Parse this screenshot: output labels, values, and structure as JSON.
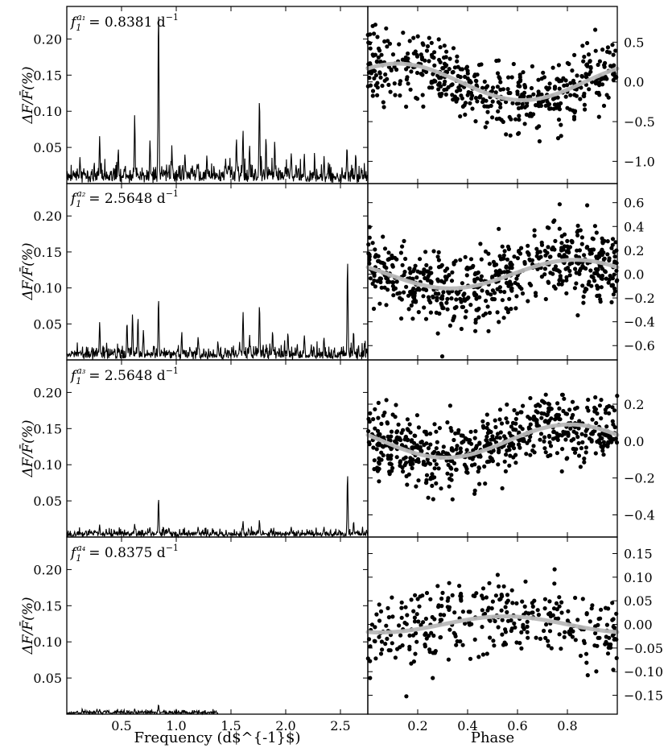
{
  "x_labels": {
    "periodogram": "Frequency (d$^{-1}$)",
    "phase": "Phase"
  },
  "y_label_text": "ΔF/F̄(%)",
  "panels": [
    {
      "annotation": {
        "prefix": "f",
        "sub": "1",
        "sup": "a₁",
        "value": "= 0.8381 d",
        "unit_exp": "−1"
      },
      "phase_yticks": [
        "0.5",
        "0.0",
        "−0.5",
        "−1.0"
      ]
    },
    {
      "annotation": {
        "prefix": "f",
        "sub": "1",
        "sup": "a₂",
        "value": "= 2.5648 d",
        "unit_exp": "−1"
      },
      "phase_yticks": [
        "0.6",
        "0.4",
        "0.2",
        "0.0",
        "−0.2",
        "−0.4",
        "−0.6"
      ]
    },
    {
      "annotation": {
        "prefix": "f",
        "sub": "1",
        "sup": "a₃",
        "value": "= 2.5648 d",
        "unit_exp": "−1"
      },
      "phase_yticks": [
        "0.2",
        "0.0",
        "−0.2",
        "−0.4"
      ]
    },
    {
      "annotation": {
        "prefix": "f",
        "sub": "1",
        "sup": "a₄",
        "value": "= 0.8375 d",
        "unit_exp": "−1"
      },
      "phase_yticks": [
        "0.15",
        "0.10",
        "0.05",
        "0.00",
        "−0.05",
        "−0.10",
        "−0.15"
      ]
    }
  ],
  "chart_data": [
    {
      "type": "line",
      "panel": "periodogram-1",
      "xlabel": "Frequency (d$^{-1}$)",
      "ylabel": "ΔF/F̄(%)",
      "xlim": [
        0.0,
        2.75
      ],
      "ylim": [
        0.0,
        0.245
      ],
      "xticks": [
        "0.5",
        "1.0",
        "1.5",
        "2.0",
        "2.5"
      ],
      "yticks": [
        "0.05",
        "0.10",
        "0.15",
        "0.20"
      ],
      "noise_level": 0.02,
      "peaks": [
        {
          "x": 0.12,
          "y": 0.035
        },
        {
          "x": 0.3,
          "y": 0.063
        },
        {
          "x": 0.47,
          "y": 0.042
        },
        {
          "x": 0.62,
          "y": 0.088
        },
        {
          "x": 0.76,
          "y": 0.058
        },
        {
          "x": 0.838,
          "y": 0.242
        },
        {
          "x": 0.96,
          "y": 0.046
        },
        {
          "x": 1.08,
          "y": 0.04
        },
        {
          "x": 1.28,
          "y": 0.038
        },
        {
          "x": 1.55,
          "y": 0.06
        },
        {
          "x": 1.61,
          "y": 0.072
        },
        {
          "x": 1.67,
          "y": 0.052
        },
        {
          "x": 1.76,
          "y": 0.116
        },
        {
          "x": 1.82,
          "y": 0.06
        },
        {
          "x": 1.9,
          "y": 0.055
        },
        {
          "x": 2.05,
          "y": 0.04
        },
        {
          "x": 2.17,
          "y": 0.038
        },
        {
          "x": 2.35,
          "y": 0.03
        },
        {
          "x": 2.56,
          "y": 0.046
        },
        {
          "x": 2.64,
          "y": 0.038
        }
      ]
    },
    {
      "type": "scatter",
      "panel": "phase-1",
      "xlabel": "Phase",
      "xlim": [
        0.0,
        1.0
      ],
      "ylim": [
        -1.28,
        0.95
      ],
      "xticks": [
        "0.2",
        "0.4",
        "0.6",
        "0.8"
      ],
      "yticks": [
        0.5,
        0.0,
        -0.5,
        -1.0
      ],
      "n_points": 520,
      "scatter_sigma": 0.27,
      "fit_curve": {
        "amplitude": 0.23,
        "phase_of_max": 0.12,
        "offset": 0.0
      }
    },
    {
      "type": "line",
      "panel": "periodogram-2",
      "xlabel": "Frequency (d$^{-1}$)",
      "ylabel": "ΔF/F̄(%)",
      "xlim": [
        0.0,
        2.75
      ],
      "ylim": [
        0.0,
        0.245
      ],
      "xticks": [
        "0.5",
        "1.0",
        "1.5",
        "2.0",
        "2.5"
      ],
      "yticks": [
        "0.05",
        "0.10",
        "0.15",
        "0.20"
      ],
      "noise_level": 0.015,
      "peaks": [
        {
          "x": 0.3,
          "y": 0.05
        },
        {
          "x": 0.55,
          "y": 0.052
        },
        {
          "x": 0.6,
          "y": 0.062
        },
        {
          "x": 0.65,
          "y": 0.055
        },
        {
          "x": 0.7,
          "y": 0.04
        },
        {
          "x": 0.838,
          "y": 0.086
        },
        {
          "x": 1.05,
          "y": 0.035
        },
        {
          "x": 1.2,
          "y": 0.03
        },
        {
          "x": 1.38,
          "y": 0.025
        },
        {
          "x": 1.61,
          "y": 0.062
        },
        {
          "x": 1.67,
          "y": 0.032
        },
        {
          "x": 1.76,
          "y": 0.075
        },
        {
          "x": 1.88,
          "y": 0.04
        },
        {
          "x": 2.02,
          "y": 0.038
        },
        {
          "x": 2.17,
          "y": 0.032
        },
        {
          "x": 2.35,
          "y": 0.03
        },
        {
          "x": 2.565,
          "y": 0.137
        },
        {
          "x": 2.62,
          "y": 0.04
        }
      ]
    },
    {
      "type": "scatter",
      "panel": "phase-2",
      "xlabel": "Phase",
      "xlim": [
        0.0,
        1.0
      ],
      "ylim": [
        -0.72,
        0.76
      ],
      "xticks": [
        "0.2",
        "0.4",
        "0.6",
        "0.8"
      ],
      "yticks": [
        0.6,
        0.4,
        0.2,
        0.0,
        -0.2,
        -0.4,
        -0.6
      ],
      "n_points": 620,
      "scatter_sigma": 0.2,
      "fit_curve": {
        "amplitude": 0.12,
        "phase_of_max": 0.83,
        "offset": 0.0
      }
    },
    {
      "type": "line",
      "panel": "periodogram-3",
      "xlabel": "Frequency (d$^{-1}$)",
      "ylabel": "ΔF/F̄(%)",
      "xlim": [
        0.0,
        2.75
      ],
      "ylim": [
        0.0,
        0.245
      ],
      "xticks": [
        "0.5",
        "1.0",
        "1.5",
        "2.0",
        "2.5"
      ],
      "yticks": [
        "0.05",
        "0.10",
        "0.15",
        "0.20"
      ],
      "noise_level": 0.008,
      "peaks": [
        {
          "x": 0.3,
          "y": 0.014
        },
        {
          "x": 0.62,
          "y": 0.018
        },
        {
          "x": 0.76,
          "y": 0.012
        },
        {
          "x": 0.838,
          "y": 0.054
        },
        {
          "x": 1.2,
          "y": 0.012
        },
        {
          "x": 1.61,
          "y": 0.018
        },
        {
          "x": 1.76,
          "y": 0.022
        },
        {
          "x": 2.05,
          "y": 0.014
        },
        {
          "x": 2.35,
          "y": 0.012
        },
        {
          "x": 2.565,
          "y": 0.086
        },
        {
          "x": 2.62,
          "y": 0.02
        }
      ]
    },
    {
      "type": "scatter",
      "panel": "phase-3",
      "xlabel": "Phase",
      "xlim": [
        0.0,
        1.0
      ],
      "ylim": [
        -0.52,
        0.44
      ],
      "xticks": [
        "0.2",
        "0.4",
        "0.6",
        "0.8"
      ],
      "yticks": [
        0.2,
        0.0,
        -0.2,
        -0.4
      ],
      "n_points": 620,
      "scatter_sigma": 0.12,
      "fit_curve": {
        "amplitude": 0.09,
        "phase_of_max": 0.81,
        "offset": 0.0
      }
    },
    {
      "type": "line",
      "panel": "periodogram-4",
      "xlabel": "Frequency (d$^{-1}$)",
      "ylabel": "ΔF/F̄(%)",
      "xlim": [
        0.0,
        2.75
      ],
      "ylim": [
        0.0,
        0.245
      ],
      "xticks": [
        "0.5",
        "1.0",
        "1.5",
        "2.0",
        "2.5"
      ],
      "yticks": [
        "0.05",
        "0.10",
        "0.15",
        "0.20"
      ],
      "x_end": 1.38,
      "noise_level": 0.004,
      "peaks": [
        {
          "x": 0.3,
          "y": 0.006
        },
        {
          "x": 0.62,
          "y": 0.007
        },
        {
          "x": 0.838,
          "y": 0.013
        },
        {
          "x": 1.0,
          "y": 0.006
        }
      ]
    },
    {
      "type": "scatter",
      "panel": "phase-4",
      "xlabel": "Phase",
      "xlim": [
        0.0,
        1.0
      ],
      "ylim": [
        -0.19,
        0.185
      ],
      "xticks": [
        "0.2",
        "0.4",
        "0.6",
        "0.8"
      ],
      "yticks": [
        0.15,
        0.1,
        0.05,
        0.0,
        -0.05,
        -0.1,
        -0.15
      ],
      "n_points": 330,
      "scatter_sigma": 0.055,
      "fit_curve": {
        "amplitude": 0.017,
        "phase_of_max": 0.55,
        "offset": 0.0
      }
    }
  ]
}
